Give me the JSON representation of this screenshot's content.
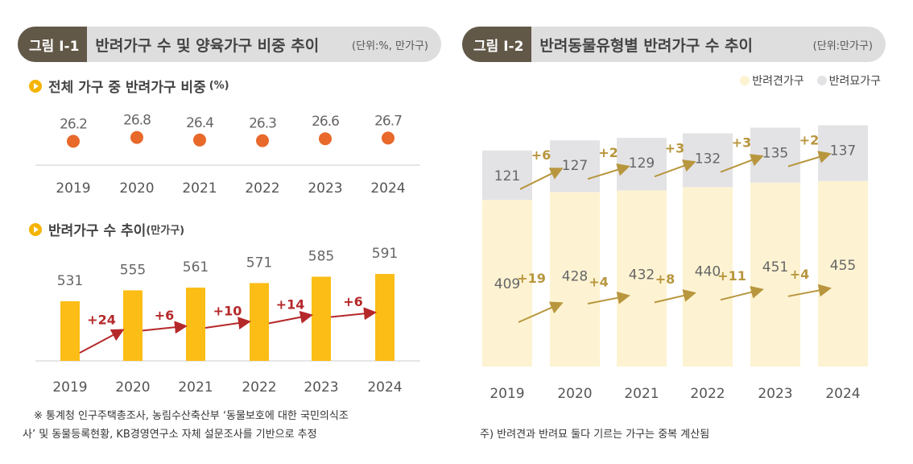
{
  "left": {
    "fig_label": "그림 Ⅰ-1",
    "title": "반려가구 수 및 양육가구 비중 추이",
    "unit": "(단위:%, 만가구)",
    "sub1": "전체 가구 중 반려가구 비중",
    "sub1_unit": "(%)",
    "sub2": "반려가구 수 추이",
    "sub2_unit": "(만가구)",
    "note1": "※ 통계청 인구주택총조사, 농림수산축산부 ‘동물보호에 대한 국민의식조",
    "note2": "사’ 및 동물등록현황, KB경영연구소 자체 설문조사를 기반으로 추정"
  },
  "right": {
    "fig_label": "그림 Ⅰ-2",
    "title": "반려동물유형별 반려가구 수 추이",
    "unit": "(단위:만가구)",
    "note": "주) 반려견과 반려묘 둘다 기르는 가구는 중복 계산됨"
  },
  "chart_data": [
    {
      "type": "scatter",
      "title": "전체 가구 중 반려가구 비중 (%)",
      "categories": [
        "2019",
        "2020",
        "2021",
        "2022",
        "2023",
        "2024"
      ],
      "values": [
        26.2,
        26.8,
        26.4,
        26.3,
        26.6,
        26.7
      ],
      "labels": [
        "26.2",
        "26.8",
        "26.4",
        "26.3",
        "26.6",
        "26.7"
      ],
      "color": "#e8692a"
    },
    {
      "type": "bar",
      "title": "반려가구 수 추이(만가구)",
      "categories": [
        "2019",
        "2020",
        "2021",
        "2022",
        "2023",
        "2024"
      ],
      "values": [
        531,
        555,
        561,
        571,
        585,
        591
      ],
      "changes": [
        "+24",
        "+6",
        "+10",
        "+14",
        "+6"
      ],
      "color": "#fbbd16",
      "change_color": "#b5282a"
    },
    {
      "type": "bar",
      "stacked": true,
      "categories": [
        "2019",
        "2020",
        "2021",
        "2022",
        "2023",
        "2024"
      ],
      "series": [
        {
          "name": "반려견가구",
          "values": [
            409,
            428,
            432,
            440,
            451,
            455
          ],
          "changes": [
            "+19",
            "+4",
            "+8",
            "+11",
            "+4"
          ],
          "color": "#fdf3d2"
        },
        {
          "name": "반려묘가구",
          "values": [
            121,
            127,
            129,
            132,
            135,
            137
          ],
          "changes": [
            "+6",
            "+2",
            "+3",
            "+3",
            "+2"
          ],
          "color": "#e3e3e6"
        }
      ],
      "change_color": "#b8963e",
      "legend": "top-right"
    }
  ]
}
